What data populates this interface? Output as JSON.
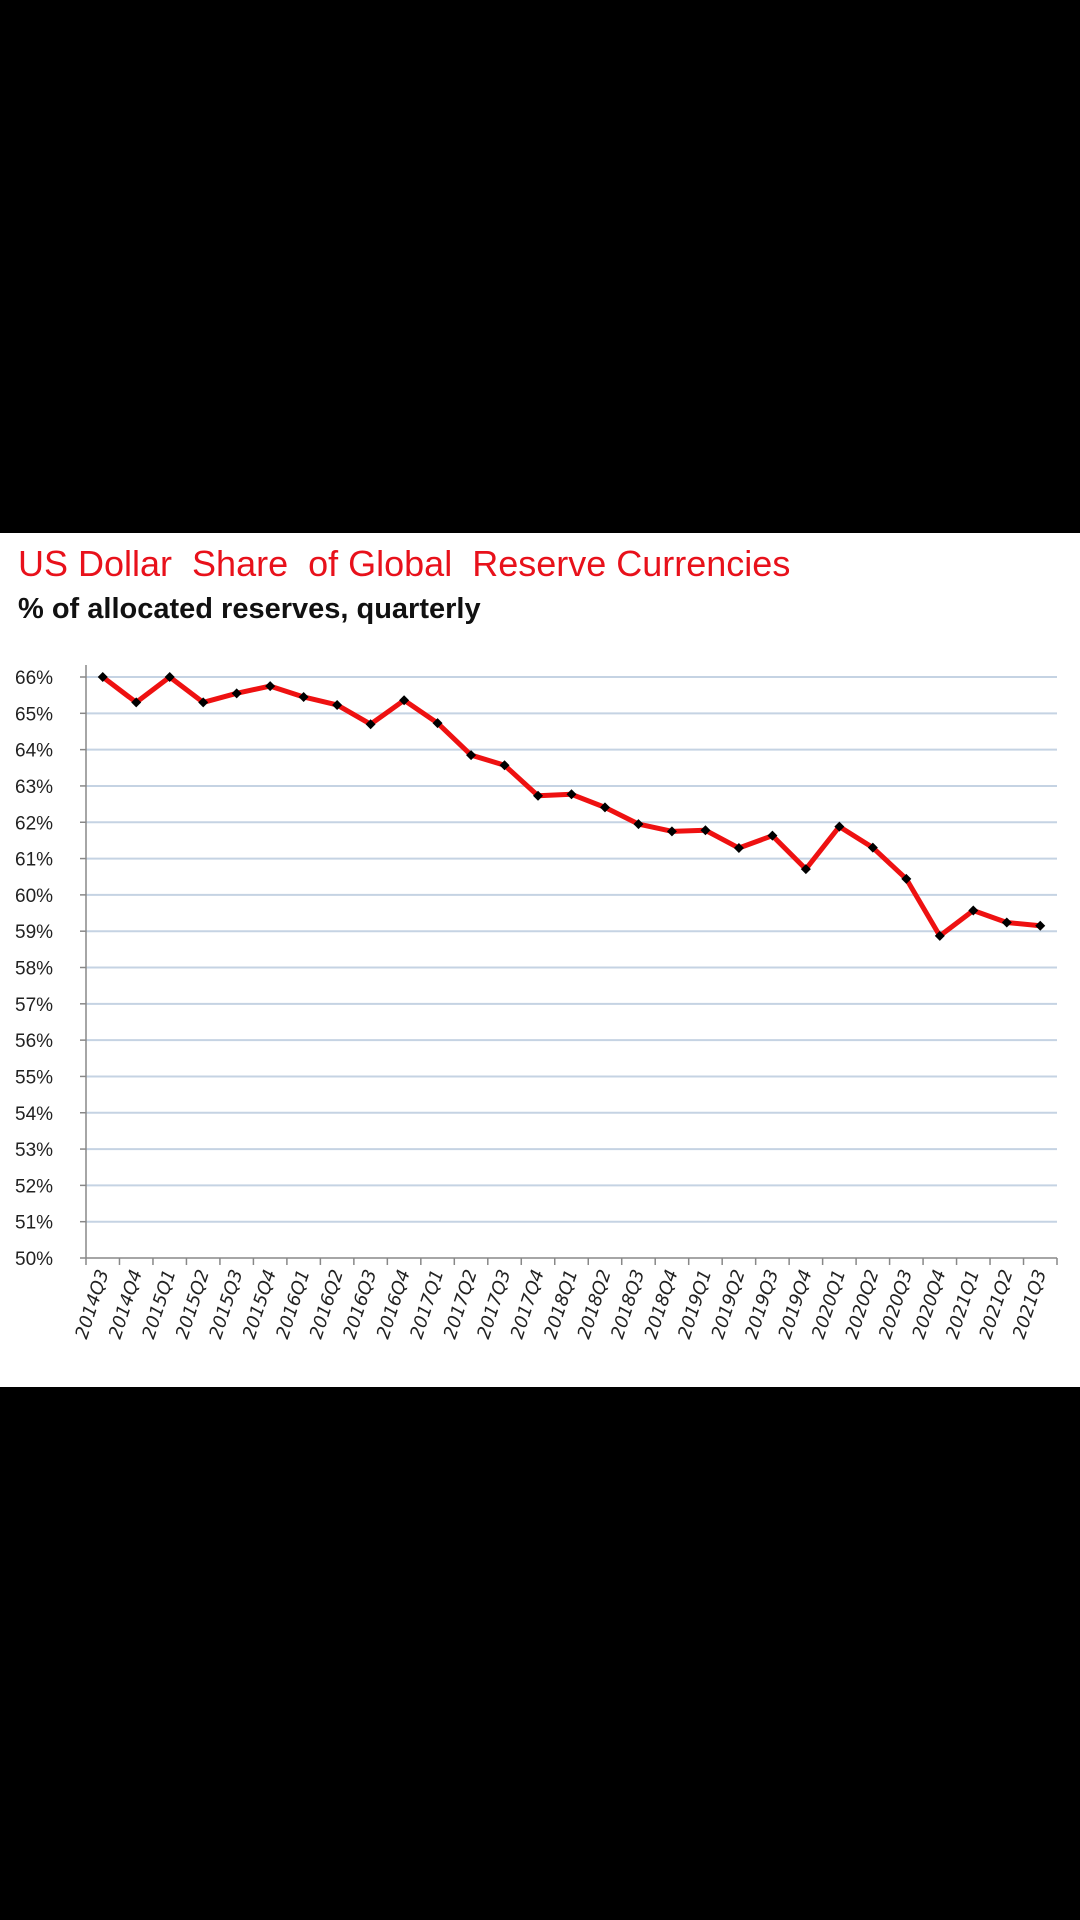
{
  "chart_data": {
    "type": "line",
    "title": "US Dollar  Share  of Global  Reserve Currencies",
    "subtitle": "% of allocated reserves, quarterly",
    "xlabel": "",
    "ylabel": "",
    "ylim": [
      50,
      66
    ],
    "yticks": [
      50,
      51,
      52,
      53,
      54,
      55,
      56,
      57,
      58,
      59,
      60,
      61,
      62,
      63,
      64,
      65,
      66
    ],
    "ytick_suffix": "%",
    "grid": true,
    "categories": [
      "2014Q3",
      "2014Q4",
      "2015Q1",
      "2015Q2",
      "2015Q3",
      "2015Q4",
      "2016Q1",
      "2016Q2",
      "2016Q3",
      "2016Q4",
      "2017Q1",
      "2017Q2",
      "2017Q3",
      "2017Q4",
      "2018Q1",
      "2018Q2",
      "2018Q3",
      "2018Q4",
      "2019Q1",
      "2019Q2",
      "2019Q3",
      "2019Q4",
      "2020Q1",
      "2020Q2",
      "2020Q3",
      "2020Q4",
      "2021Q1",
      "2021Q2",
      "2021Q3"
    ],
    "series": [
      {
        "name": "US Dollar share",
        "color": "#ee1111",
        "marker_color": "#000000",
        "values": [
          66.0,
          65.3,
          66.0,
          65.3,
          65.55,
          65.75,
          65.45,
          65.23,
          64.7,
          65.36,
          64.73,
          63.85,
          63.57,
          62.73,
          62.77,
          62.41,
          61.95,
          61.75,
          61.78,
          61.29,
          61.63,
          60.71,
          61.88,
          61.3,
          60.44,
          58.87,
          59.57,
          59.24,
          59.15
        ]
      }
    ]
  }
}
